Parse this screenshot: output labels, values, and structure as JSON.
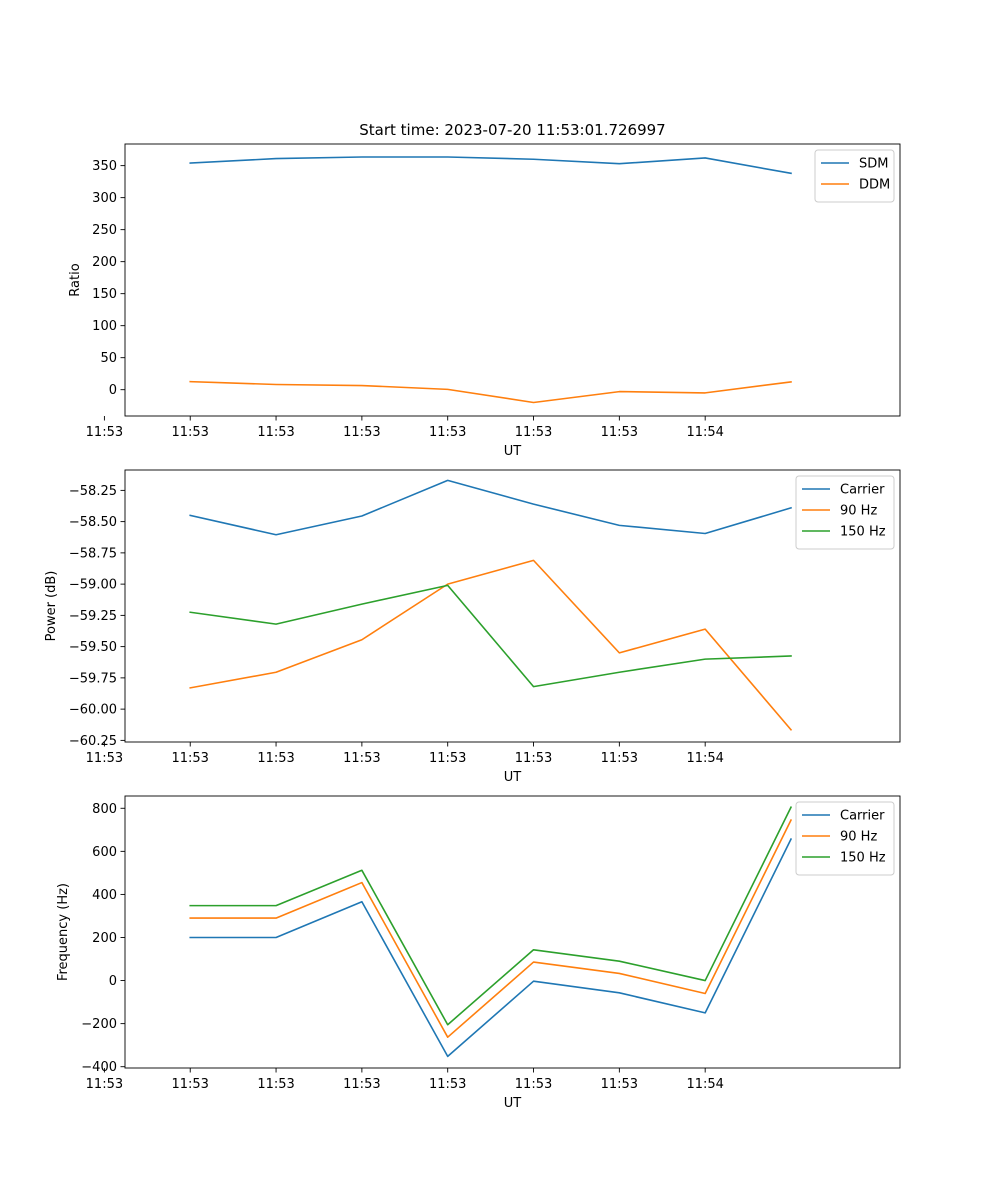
{
  "figure": {
    "title": "Start time: 2023-07-20 11:53:01.726997"
  },
  "colors": {
    "blue": "#1f77b4",
    "orange": "#ff7f0e",
    "green": "#2ca02c"
  },
  "chart_data": [
    {
      "type": "line",
      "title": "Start time: 2023-07-20 11:53:01.726997",
      "xlabel": "UT",
      "ylabel": "Ratio",
      "x_tick_labels": [
        "11:53",
        "11:53",
        "11:53",
        "11:53",
        "11:53",
        "11:53",
        "11:53",
        "11:54"
      ],
      "x_points": [
        1,
        2,
        3,
        4,
        5,
        6,
        7,
        8
      ],
      "xlim": [
        0.24,
        9.27
      ],
      "ylim": [
        -41.1,
        383.8
      ],
      "y_ticks": [
        350,
        300,
        250,
        200,
        150,
        100,
        50,
        0
      ],
      "y_tick_labels": [
        "350",
        "300",
        "250",
        "200",
        "150",
        "100",
        "50",
        "0"
      ],
      "legend_position": "upper right",
      "series": [
        {
          "name": "SDM",
          "color": "#1f77b4",
          "values": [
            354,
            361,
            363.5,
            363.5,
            360,
            353,
            362,
            338
          ]
        },
        {
          "name": "DDM",
          "color": "#ff7f0e",
          "values": [
            12.6,
            8.1,
            6.5,
            0.5,
            -20,
            -3,
            -5,
            12.2
          ]
        }
      ]
    },
    {
      "type": "line",
      "xlabel": "UT",
      "ylabel": "Power (dB)",
      "x_tick_labels": [
        "11:53",
        "11:53",
        "11:53",
        "11:53",
        "11:53",
        "11:53",
        "11:53",
        "11:54"
      ],
      "x_points": [
        1,
        2,
        3,
        4,
        5,
        6,
        7,
        8
      ],
      "xlim": [
        0.24,
        9.27
      ],
      "ylim": [
        -60.263,
        -58.087
      ],
      "y_ticks": [
        -58.25,
        -58.5,
        -58.75,
        -59.0,
        -59.25,
        -59.5,
        -59.75,
        -60.0,
        -60.25
      ],
      "y_tick_labels": [
        "−58.25",
        "−58.50",
        "−58.75",
        "−59.00",
        "−59.25",
        "−59.50",
        "−59.75",
        "−60.00",
        "−60.25"
      ],
      "legend_position": "upper right",
      "series": [
        {
          "name": "Carrier",
          "color": "#1f77b4",
          "values": [
            -58.45,
            -58.605,
            -58.455,
            -58.17,
            -58.36,
            -58.53,
            -58.595,
            -58.39
          ]
        },
        {
          "name": "90 Hz",
          "color": "#ff7f0e",
          "values": [
            -59.83,
            -59.705,
            -59.445,
            -59.0,
            -58.81,
            -59.55,
            -59.36,
            -60.165
          ]
        },
        {
          "name": "150 Hz",
          "color": "#2ca02c",
          "values": [
            -59.225,
            -59.32,
            -59.16,
            -59.01,
            -59.82,
            -59.705,
            -59.6,
            -59.575
          ]
        }
      ]
    },
    {
      "type": "line",
      "xlabel": "UT",
      "ylabel": "Frequency (Hz)",
      "x_tick_labels": [
        "11:53",
        "11:53",
        "11:53",
        "11:53",
        "11:53",
        "11:53",
        "11:53",
        "11:54"
      ],
      "x_points": [
        1,
        2,
        3,
        4,
        5,
        6,
        7,
        8
      ],
      "xlim": [
        0.24,
        9.27
      ],
      "ylim": [
        -406,
        857
      ],
      "y_ticks": [
        800,
        600,
        400,
        200,
        0,
        -200,
        -400
      ],
      "y_tick_labels": [
        "800",
        "600",
        "400",
        "200",
        "0",
        "−200",
        "−400"
      ],
      "legend_position": "upper right",
      "series": [
        {
          "name": "Carrier",
          "color": "#1f77b4",
          "values": [
            200,
            200,
            366,
            -352,
            -3,
            -57,
            -150,
            657
          ]
        },
        {
          "name": "90 Hz",
          "color": "#ff7f0e",
          "values": [
            290,
            290,
            455,
            -263,
            86,
            33,
            -60,
            745
          ]
        },
        {
          "name": "150 Hz",
          "color": "#2ca02c",
          "values": [
            348,
            348,
            512,
            -205,
            143,
            90,
            0,
            805
          ]
        }
      ]
    }
  ]
}
